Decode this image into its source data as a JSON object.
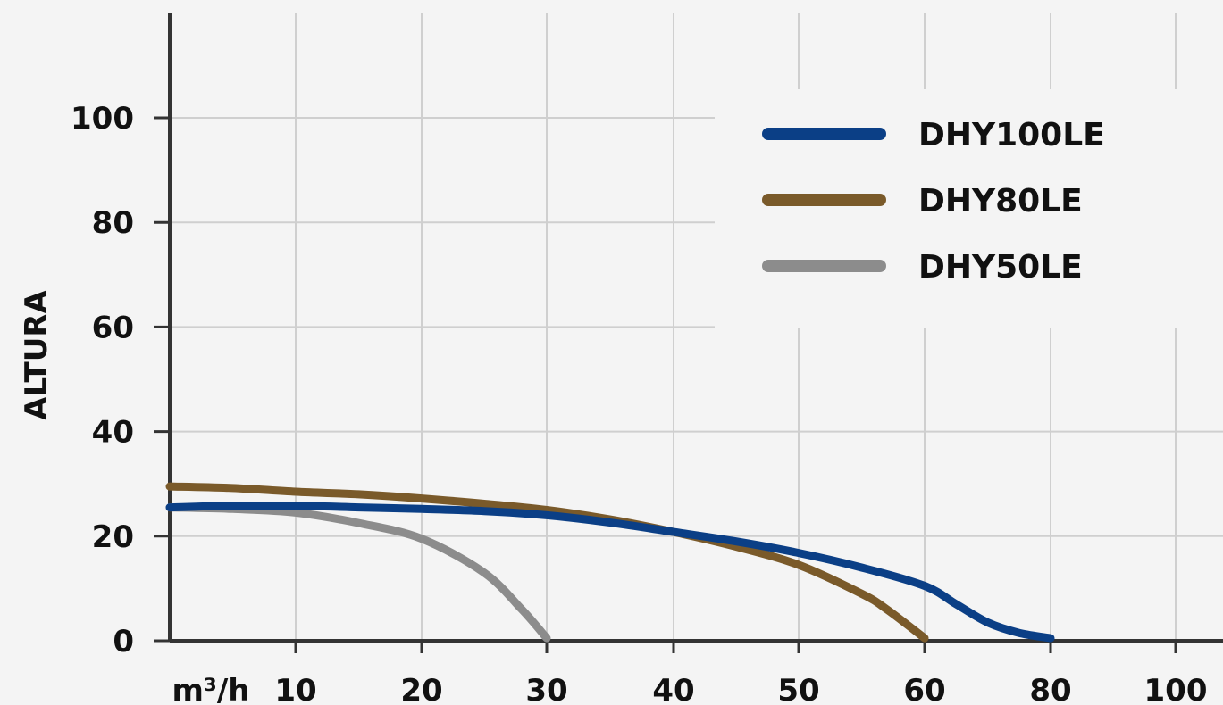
{
  "chart_data": {
    "type": "line",
    "title": "",
    "xlabel": "m³/h",
    "ylabel": "ALTURA",
    "x_ticks": [
      10,
      20,
      30,
      40,
      50,
      60,
      80,
      100
    ],
    "y_ticks": [
      0,
      20,
      40,
      60,
      80,
      100
    ],
    "xlim": [
      0,
      100
    ],
    "ylim": [
      0,
      100
    ],
    "grid": true,
    "legend_position": "top-right",
    "series": [
      {
        "name": "DHY100LE",
        "color": "#0b3f86",
        "points": [
          [
            0,
            25.5
          ],
          [
            5,
            25.8
          ],
          [
            10,
            25.8
          ],
          [
            15,
            25.5
          ],
          [
            20,
            25.2
          ],
          [
            25,
            24.8
          ],
          [
            30,
            24
          ],
          [
            35,
            22.6
          ],
          [
            40,
            20.8
          ],
          [
            45,
            19
          ],
          [
            50,
            16.8
          ],
          [
            55,
            14
          ],
          [
            60,
            10.5
          ],
          [
            65,
            7
          ],
          [
            70,
            3.5
          ],
          [
            75,
            1.5
          ],
          [
            80,
            0.5
          ]
        ]
      },
      {
        "name": "DHY80LE",
        "color": "#7a5a2a",
        "points": [
          [
            0,
            29.5
          ],
          [
            5,
            29.2
          ],
          [
            10,
            28.5
          ],
          [
            15,
            28
          ],
          [
            20,
            27.2
          ],
          [
            25,
            26.2
          ],
          [
            30,
            25
          ],
          [
            35,
            23.2
          ],
          [
            40,
            20.8
          ],
          [
            45,
            18
          ],
          [
            50,
            14.5
          ],
          [
            55,
            9
          ],
          [
            57,
            6
          ],
          [
            60,
            0.5
          ]
        ]
      },
      {
        "name": "DHY50LE",
        "color": "#8c8c8c",
        "points": [
          [
            0,
            25.5
          ],
          [
            5,
            25.2
          ],
          [
            10,
            24.5
          ],
          [
            15,
            22.5
          ],
          [
            20,
            19.5
          ],
          [
            25,
            13
          ],
          [
            28,
            6
          ],
          [
            30,
            0.5
          ]
        ]
      }
    ]
  }
}
